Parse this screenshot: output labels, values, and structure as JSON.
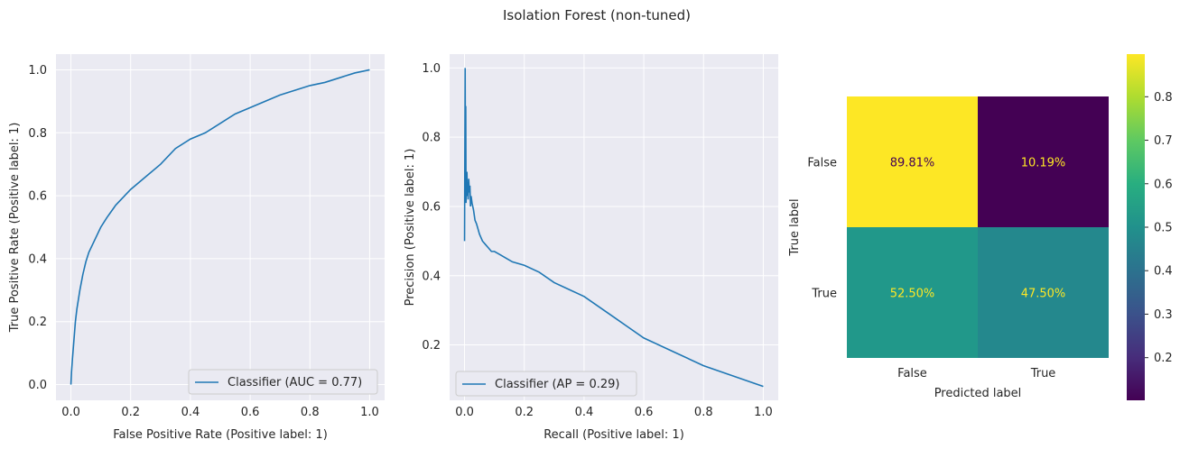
{
  "title": "Isolation Forest (non-tuned)",
  "colors": {
    "line": "#1f77b4",
    "panel_bg": "#eaeaf2"
  },
  "chart_data": [
    {
      "type": "line",
      "xlabel": "False Positive Rate (Positive label: 1)",
      "ylabel": "True Positive Rate (Positive label: 1)",
      "xlim": [
        -0.05,
        1.05
      ],
      "ylim": [
        -0.05,
        1.05
      ],
      "xticks": [
        "0.0",
        "0.2",
        "0.4",
        "0.6",
        "0.8",
        "1.0"
      ],
      "yticks": [
        "0.0",
        "0.2",
        "0.4",
        "0.6",
        "0.8",
        "1.0"
      ],
      "legend": {
        "label": "Classifier (AUC = 0.77)",
        "placement": "lower-right"
      },
      "grid": true,
      "series": [
        {
          "x": [
            0,
            0.002,
            0.005,
            0.01,
            0.015,
            0.02,
            0.03,
            0.04,
            0.05,
            0.06,
            0.08,
            0.1,
            0.12,
            0.15,
            0.18,
            0.2,
            0.25,
            0.3,
            0.35,
            0.4,
            0.45,
            0.5,
            0.55,
            0.6,
            0.65,
            0.7,
            0.75,
            0.8,
            0.85,
            0.9,
            0.95,
            1.0
          ],
          "y": [
            0,
            0.04,
            0.08,
            0.14,
            0.2,
            0.24,
            0.3,
            0.35,
            0.39,
            0.42,
            0.46,
            0.5,
            0.53,
            0.57,
            0.6,
            0.62,
            0.66,
            0.7,
            0.75,
            0.78,
            0.8,
            0.83,
            0.86,
            0.88,
            0.9,
            0.92,
            0.935,
            0.95,
            0.96,
            0.975,
            0.99,
            1.0
          ]
        }
      ]
    },
    {
      "type": "line",
      "xlabel": "Recall (Positive label: 1)",
      "ylabel": "Precision (Positive label: 1)",
      "xlim": [
        -0.05,
        1.05
      ],
      "ylim": [
        0.04,
        1.04
      ],
      "xticks": [
        "0.0",
        "0.2",
        "0.4",
        "0.6",
        "0.8",
        "1.0"
      ],
      "yticks": [
        "0.2",
        "0.4",
        "0.6",
        "0.8",
        "1.0"
      ],
      "legend": {
        "label": "Classifier (AP = 0.29)",
        "placement": "lower-left"
      },
      "grid": true,
      "series": [
        {
          "x": [
            0,
            0.002,
            0.003,
            0.004,
            0.005,
            0.006,
            0.007,
            0.008,
            0.009,
            0.01,
            0.012,
            0.014,
            0.016,
            0.018,
            0.02,
            0.022,
            0.025,
            0.03,
            0.035,
            0.04,
            0.05,
            0.06,
            0.07,
            0.08,
            0.09,
            0.1,
            0.12,
            0.14,
            0.16,
            0.2,
            0.25,
            0.3,
            0.35,
            0.4,
            0.45,
            0.5,
            0.55,
            0.6,
            0.7,
            0.8,
            0.9,
            1.0
          ],
          "y": [
            0.5,
            1.0,
            0.7,
            0.89,
            0.61,
            0.69,
            0.63,
            0.7,
            0.66,
            0.67,
            0.62,
            0.68,
            0.64,
            0.66,
            0.6,
            0.63,
            0.61,
            0.59,
            0.56,
            0.55,
            0.52,
            0.5,
            0.49,
            0.48,
            0.47,
            0.47,
            0.46,
            0.45,
            0.44,
            0.43,
            0.41,
            0.38,
            0.36,
            0.34,
            0.31,
            0.28,
            0.25,
            0.22,
            0.18,
            0.14,
            0.11,
            0.08
          ]
        }
      ]
    },
    {
      "type": "heatmap",
      "xlabel": "Predicted label",
      "ylabel": "True label",
      "x_categories": [
        "False",
        "True"
      ],
      "y_categories": [
        "False",
        "True"
      ],
      "values": [
        [
          0.8981,
          0.1019
        ],
        [
          0.525,
          0.475
        ]
      ],
      "labels": [
        [
          "89.81%",
          "10.19%"
        ],
        [
          "52.50%",
          "47.50%"
        ]
      ],
      "colormap": "viridis",
      "colorbar_range": [
        0.1019,
        0.8981
      ],
      "colorbar_ticks": [
        "0.2",
        "0.3",
        "0.4",
        "0.5",
        "0.6",
        "0.7",
        "0.8"
      ]
    }
  ]
}
